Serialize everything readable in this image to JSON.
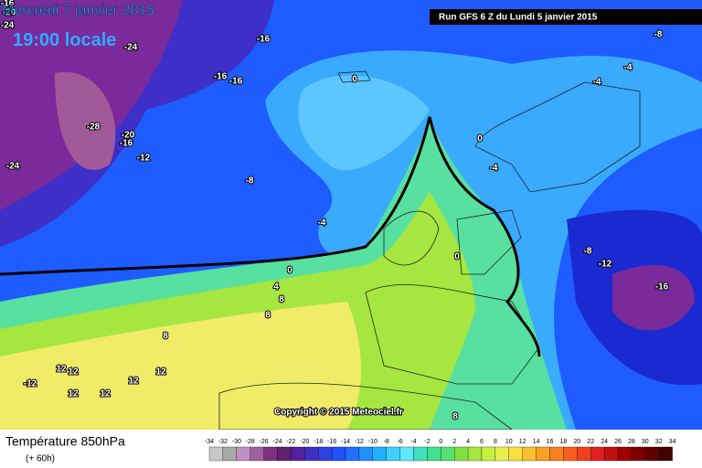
{
  "header": {
    "date": "Mercredi 7 janvier 2015",
    "time": "19:00 locale",
    "run": "Run GFS 6 Z du Lundi 5 janvier 2015"
  },
  "copyright": "Copyright © 2015 Meteociel.fr",
  "contour_labels": [
    -16,
    -20,
    -24,
    -24,
    -16,
    -16,
    -16,
    0,
    -8,
    -4,
    -4,
    -28,
    -20,
    -16,
    -12,
    -24,
    -8,
    0,
    -4,
    -4,
    0,
    -8,
    -12,
    0,
    4,
    -16,
    8,
    8,
    8,
    12,
    12,
    -12,
    12,
    12,
    12,
    12,
    8
  ],
  "legend": {
    "title": "Température 850hPa",
    "subtitle": "(+ 60h)",
    "labels": [
      -34,
      -32,
      -30,
      -28,
      -26,
      -24,
      -22,
      -20,
      -18,
      -16,
      -14,
      -12,
      -10,
      -8,
      -6,
      -4,
      -2,
      0,
      2,
      4,
      6,
      8,
      10,
      12,
      14,
      16,
      18,
      20,
      22,
      24,
      26,
      28,
      30,
      32,
      34
    ]
  }
}
